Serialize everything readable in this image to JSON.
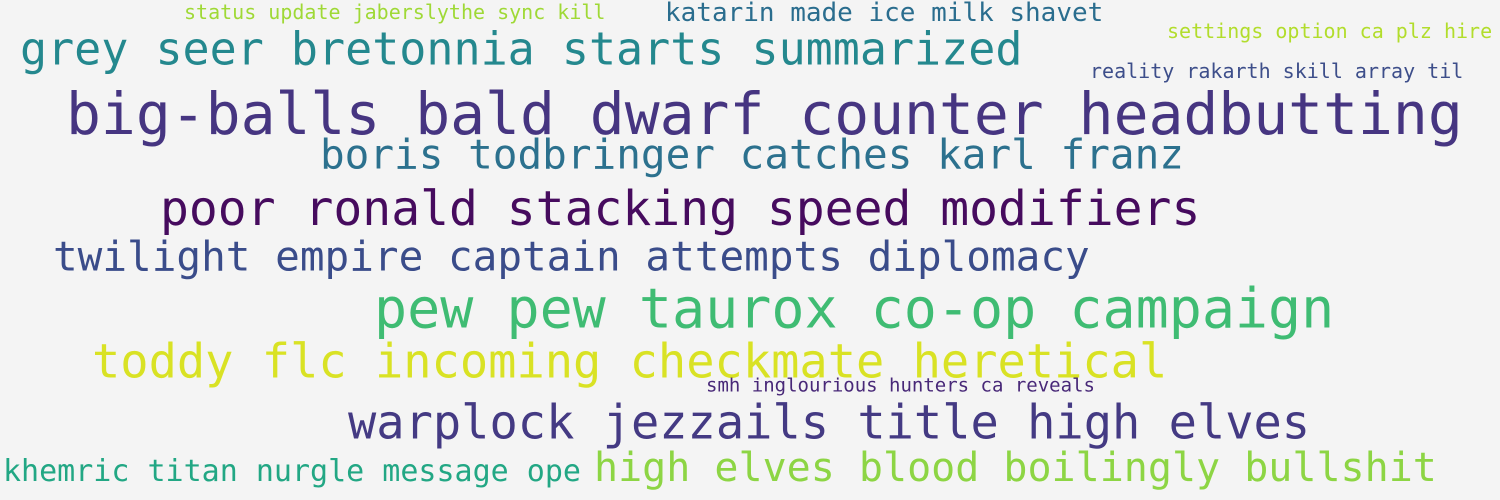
{
  "background_color": "#f4f4f4",
  "phrases": [
    {
      "text": "status update jaberslythe sync kill",
      "color": "#9fd936"
    },
    {
      "text": "katarin made ice milk shavet",
      "color": "#2a6d8e"
    },
    {
      "text": "grey seer bretonnia starts summarized",
      "color": "#24888e"
    },
    {
      "text": "settings option ca plz hire",
      "color": "#b2dd2c"
    },
    {
      "text": "reality rakarth skill array til",
      "color": "#3d4e8a"
    },
    {
      "text": "big-balls bald dwarf counter headbutting",
      "color": "#463581"
    },
    {
      "text": "boris todbringer catches karl franz",
      "color": "#2c718e"
    },
    {
      "text": "poor ronald stacking speed modifiers",
      "color": "#460b5e"
    },
    {
      "text": "twilight empire captain attempts diplomacy",
      "color": "#3a4c8a"
    },
    {
      "text": "pew pew taurox co-op campaign",
      "color": "#3fbc73"
    },
    {
      "text": "toddy flc incoming checkmate heretical",
      "color": "#d9e224"
    },
    {
      "text": "smh inglourious hunters ca reveals",
      "color": "#482878"
    },
    {
      "text": "warplock jezzails title high elves",
      "color": "#443a83"
    },
    {
      "text": "khemric titan nurgle message ope",
      "color": "#22a784"
    },
    {
      "text": "high elves blood boilingly bullshit",
      "color": "#8dd544"
    }
  ]
}
